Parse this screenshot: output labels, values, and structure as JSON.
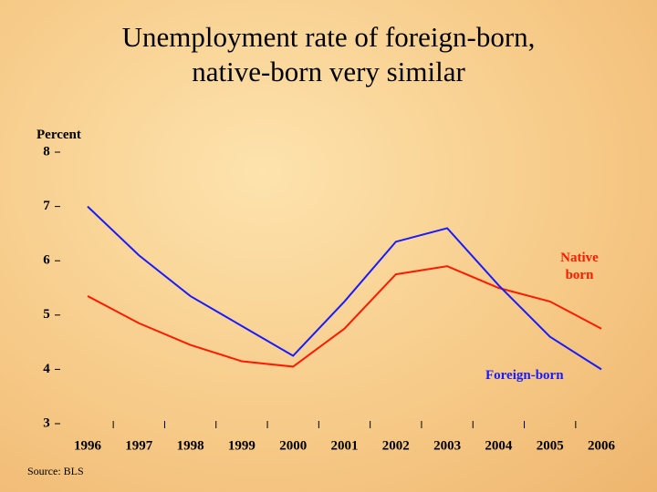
{
  "chart_data": {
    "type": "line",
    "title": "Unemployment rate of foreign-born, native-born very similar",
    "y_label": "Percent",
    "source": "Source: BLS",
    "categories": [
      "1996",
      "1997",
      "1998",
      "1999",
      "2000",
      "2001",
      "2002",
      "2003",
      "2004",
      "2005",
      "2006"
    ],
    "series": [
      {
        "name": "Native born",
        "color": "#ff1a00",
        "values": [
          5.35,
          4.85,
          4.45,
          4.15,
          4.05,
          4.75,
          5.75,
          5.9,
          5.5,
          5.25,
          4.75
        ]
      },
      {
        "name": "Foreign-born",
        "color": "#1a1aff",
        "values": [
          7.0,
          6.1,
          5.35,
          4.8,
          4.25,
          5.25,
          6.35,
          6.6,
          5.55,
          4.6,
          4.0
        ]
      }
    ],
    "ylim": [
      3,
      8
    ],
    "yticks": [
      3,
      4,
      5,
      6,
      7,
      8
    ]
  }
}
